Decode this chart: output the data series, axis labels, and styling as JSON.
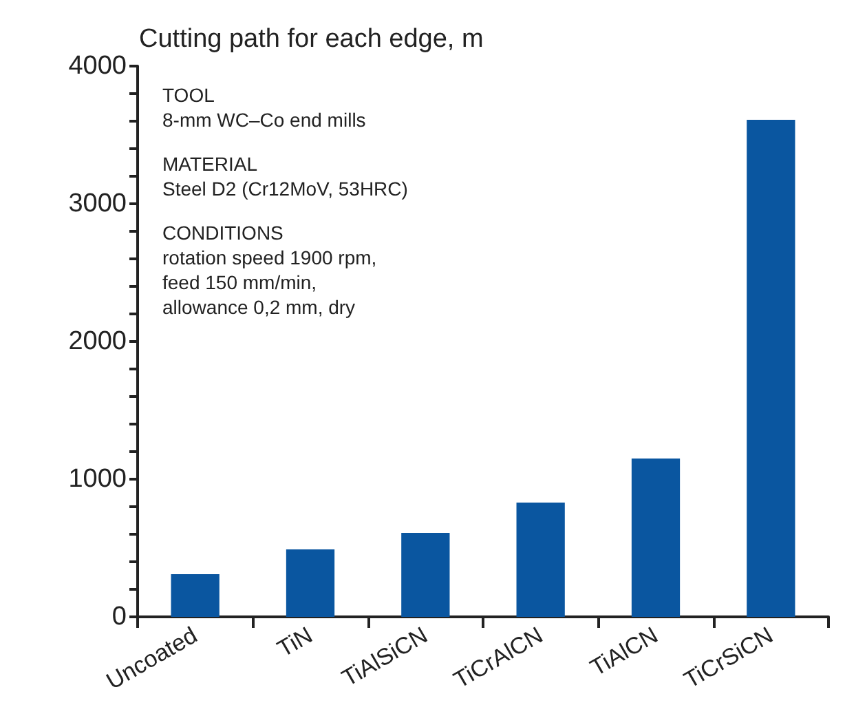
{
  "chart_data": {
    "type": "bar",
    "title": "Cutting path for each edge, m",
    "categories": [
      "Uncoated",
      "TiN",
      "TiAlSiCN",
      "TiCrAlCN",
      "TiAlCN",
      "TiCrSiCN"
    ],
    "values": [
      310,
      490,
      610,
      830,
      1150,
      3610
    ],
    "color": "#0a56a0",
    "ylim": [
      0,
      4000
    ],
    "yticks": [
      0,
      {
        "value": 200,
        "label": null
      },
      {
        "value": 400,
        "label": null
      },
      {
        "value": 600,
        "label": null
      },
      {
        "value": 800,
        "label": null
      },
      1000,
      {
        "value": 1200,
        "label": null
      },
      {
        "value": 1400,
        "label": null
      },
      {
        "value": 1600,
        "label": null
      },
      {
        "value": 1800,
        "label": null
      },
      2000,
      {
        "value": 2200,
        "label": null
      },
      {
        "value": 2400,
        "label": null
      },
      {
        "value": 2600,
        "label": null
      },
      {
        "value": 2800,
        "label": null
      },
      3000,
      {
        "value": 3200,
        "label": null
      },
      {
        "value": 3400,
        "label": null
      },
      {
        "value": 3600,
        "label": null
      },
      {
        "value": 3800,
        "label": null
      },
      4000
    ],
    "grid": false,
    "annotations": [
      "TOOL",
      "8-mm WC–Co end mills",
      "MATERIAL",
      "Steel D2 (Cr12MoV, 53HRC)",
      "CONDITIONS",
      "rotation speed 1900 rpm,",
      "feed 150 mm/min,",
      "allowance 0,2 mm, dry"
    ]
  }
}
